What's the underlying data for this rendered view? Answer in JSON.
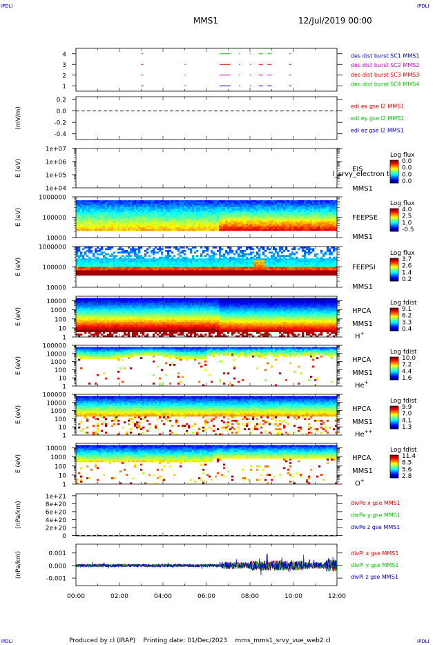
{
  "header": {
    "corner_tag": "IPDLI",
    "mission": "MMS1",
    "datetime": "12/Jul/2019 00:00"
  },
  "footer": {
    "text": "Produced by cl (IRAP)    Printing date: 01/Dec/2023    mms_mms1_srvy_vue_web2.cl"
  },
  "chart_data": {
    "type": "heatmap",
    "x_ticks": [
      "00:00",
      "02:00",
      "04:00",
      "06:00",
      "08:00",
      "10:00",
      "12:00"
    ],
    "x_range_hours": [
      0,
      12
    ],
    "panels": [
      {
        "id": "burst",
        "kind": "segments",
        "ylim": [
          0.5,
          4.5
        ],
        "y_ticks": [
          "4",
          "3",
          "2",
          "1"
        ],
        "y_tick_values": [
          4,
          3,
          2,
          1
        ],
        "ylabel": "",
        "legend": [
          {
            "text": "des dist burst SC1 MMS1",
            "color": "#0000c8"
          },
          {
            "text": "des dist burst SC2 MMS2",
            "color": "#c800c8"
          },
          {
            "text": "des dist burst SC3 MMS3",
            "color": "#dc0000"
          },
          {
            "text": "des dist burst SC4 MMS4",
            "color": "#00c800"
          }
        ],
        "rows": [
          {
            "y": 4,
            "color": "#00c800",
            "intervals": [
              [
                3.0,
                3.1
              ],
              [
                6.6,
                7.1
              ],
              [
                7.5,
                7.55
              ],
              [
                8.0,
                8.05
              ],
              [
                8.4,
                8.6
              ],
              [
                8.8,
                9.0
              ],
              [
                9.8,
                9.9
              ]
            ]
          },
          {
            "y": 3,
            "color": "#dc0000",
            "intervals": [
              [
                3.0,
                3.1
              ],
              [
                5.0,
                5.03
              ],
              [
                6.6,
                7.1
              ],
              [
                7.5,
                7.55
              ],
              [
                8.0,
                8.05
              ],
              [
                8.4,
                8.6
              ],
              [
                8.8,
                9.0
              ],
              [
                9.8,
                9.9
              ]
            ]
          },
          {
            "y": 2,
            "color": "#c800c8",
            "intervals": [
              [
                3.0,
                3.1
              ],
              [
                5.0,
                5.03
              ],
              [
                6.6,
                7.1
              ],
              [
                7.5,
                7.55
              ],
              [
                8.0,
                8.05
              ],
              [
                8.4,
                8.6
              ],
              [
                8.8,
                9.0
              ],
              [
                9.8,
                9.9
              ]
            ]
          },
          {
            "y": 1,
            "color": "#0000c8",
            "intervals": [
              [
                3.0,
                3.1
              ],
              [
                5.0,
                5.03
              ],
              [
                6.6,
                7.1
              ],
              [
                7.5,
                7.55
              ],
              [
                8.0,
                8.05
              ],
              [
                8.4,
                8.6
              ],
              [
                8.8,
                9.0
              ],
              [
                9.8,
                9.9
              ]
            ]
          }
        ]
      },
      {
        "id": "edi",
        "kind": "lines",
        "ylabel": "(mV/m)",
        "ylim": [
          -0.5,
          0.25
        ],
        "y_ticks": [
          "0.2",
          "0.0",
          "-0.2",
          "-0.4"
        ],
        "y_tick_values": [
          0.2,
          0.0,
          -0.2,
          -0.4
        ],
        "zero_line": true,
        "legend": [
          {
            "text": "edi ex gse l2 MMS1",
            "color": "#dc0000"
          },
          {
            "text": "edi ey gse l2 MMS1",
            "color": "#00c800"
          },
          {
            "text": "edi ez gse l2 MMS1",
            "color": "#0000c8"
          }
        ]
      },
      {
        "id": "eis",
        "kind": "spectrogram",
        "ylabel": "E (eV)",
        "log_y": true,
        "ylim_exp": [
          4,
          7
        ],
        "y_ticks": [
          "1e+07",
          "1e+06",
          "1e+05",
          "1e+04"
        ],
        "y_tick_values": [
          7,
          6,
          5,
          4
        ],
        "labels": [
          "EIS",
          "MMS1"
        ],
        "overlay_text": "l_srvy_electron to",
        "colorbar": {
          "title": "Log flux",
          "values": [
            "0.0",
            "0.0",
            "0.0",
            "0.0"
          ]
        },
        "fill": "none"
      },
      {
        "id": "feepse",
        "kind": "spectrogram",
        "ylabel": "E (eV)",
        "log_y": true,
        "ylim_exp": [
          4,
          6
        ],
        "y_ticks": [
          "1000000",
          "100000",
          "10000"
        ],
        "y_tick_values": [
          6,
          5,
          4
        ],
        "labels": [
          "FEEPSE",
          "MMS1"
        ],
        "colorbar": {
          "title": "Log flux",
          "values": [
            "4.0",
            "2.5",
            "1.0",
            "-0.5"
          ]
        },
        "fill": "feepse"
      },
      {
        "id": "feepsi",
        "kind": "spectrogram",
        "ylabel": "E (eV)",
        "log_y": true,
        "ylim_exp": [
          4,
          6
        ],
        "y_ticks": [
          "1000000",
          "100000",
          "10000"
        ],
        "y_tick_values": [
          6,
          5,
          4
        ],
        "labels": [
          "FEEPSI",
          "MMS1"
        ],
        "colorbar": {
          "title": "Log flux",
          "values": [
            "3.7",
            "2.6",
            "1.4",
            "0.2"
          ]
        },
        "fill": "feepsi"
      },
      {
        "id": "hpca_h",
        "kind": "spectrogram",
        "ylabel": "E (eV)",
        "log_y": true,
        "ylim_exp": [
          0,
          4.5
        ],
        "y_ticks": [
          "10000",
          "1000",
          "100",
          "10",
          "1"
        ],
        "y_tick_values": [
          4,
          3,
          2,
          1,
          0
        ],
        "labels": [
          "HPCA",
          "MMS1"
        ],
        "species": "H",
        "species_sup": "+",
        "colorbar": {
          "title": "Log fdist",
          "values": [
            "9.1",
            "6.2",
            "3.3",
            "0.4"
          ]
        },
        "fill": "hplus"
      },
      {
        "id": "hpca_he",
        "kind": "spectrogram",
        "ylabel": "E (eV)",
        "log_y": true,
        "ylim_exp": [
          0,
          5
        ],
        "y_ticks": [
          "100000",
          "10000",
          "1000",
          "100",
          "10",
          "1"
        ],
        "y_tick_values": [
          5,
          4,
          3,
          2,
          1,
          0
        ],
        "labels": [
          "HPCA",
          "MMS1"
        ],
        "species": "He",
        "species_sup": "+",
        "colorbar": {
          "title": "Log fdist",
          "values": [
            "10.0",
            "7.2",
            "4.4",
            "1.6"
          ]
        },
        "fill": "heplus"
      },
      {
        "id": "hpca_hepp",
        "kind": "spectrogram",
        "ylabel": "E (eV)",
        "log_y": true,
        "ylim_exp": [
          0,
          5
        ],
        "y_ticks": [
          "100000",
          "10000",
          "1000",
          "100",
          "10",
          "1"
        ],
        "y_tick_values": [
          5,
          4,
          3,
          2,
          1,
          0
        ],
        "labels": [
          "HPCA",
          "MMS1"
        ],
        "species": "He",
        "species_sup": "++",
        "colorbar": {
          "title": "Log fdist",
          "values": [
            "9.9",
            "7.0",
            "4.1",
            "1.3"
          ]
        },
        "fill": "heplusplus"
      },
      {
        "id": "hpca_o",
        "kind": "spectrogram",
        "ylabel": "E (eV)",
        "log_y": true,
        "ylim_exp": [
          0,
          4.5
        ],
        "y_ticks": [
          "10000",
          "1000",
          "100",
          "10",
          "1"
        ],
        "y_tick_values": [
          4,
          3,
          2,
          1,
          0
        ],
        "labels": [
          "HPCA",
          "MMS1"
        ],
        "species": "O",
        "species_sup": "+",
        "colorbar": {
          "title": "Log fdist",
          "values": [
            "11.4",
            "8.5",
            "5.6",
            "2.8"
          ]
        },
        "fill": "oplus"
      },
      {
        "id": "divpe",
        "kind": "lines",
        "ylabel": "(nPa/km)",
        "ylim": [
          -1e+19,
          1.05e+21
        ],
        "y_ticks": [
          "1e+21",
          "8e+20",
          "6e+20",
          "4e+20",
          "2e+20",
          "0"
        ],
        "y_tick_values": [
          1e+21,
          8e+20,
          6e+20,
          4e+20,
          2e+20,
          0
        ],
        "zero_line": true,
        "legend": [
          {
            "text": "divPe x gse MMS1",
            "color": "#dc0000"
          },
          {
            "text": "divPe y gse MMS1",
            "color": "#00c800"
          },
          {
            "text": "divPe z gse MMS1",
            "color": "#0000c8"
          }
        ]
      },
      {
        "id": "divpi",
        "kind": "timeseries",
        "ylabel": "(nPa/km)",
        "ylim": [
          -0.0016,
          0.0017
        ],
        "y_ticks": [
          "0.001",
          "0.000",
          "-0.001"
        ],
        "y_tick_values": [
          0.001,
          0.0,
          -0.001
        ],
        "legend": [
          {
            "text": "divPi x gse MMS1",
            "color": "#dc0000"
          },
          {
            "text": "divPi y gse MMS1",
            "color": "#00c800"
          },
          {
            "text": "divPi z gse MMS1",
            "color": "#0000c8"
          }
        ],
        "series_colors": [
          "#dc0000",
          "#00c800",
          "#0000c8"
        ]
      }
    ]
  }
}
